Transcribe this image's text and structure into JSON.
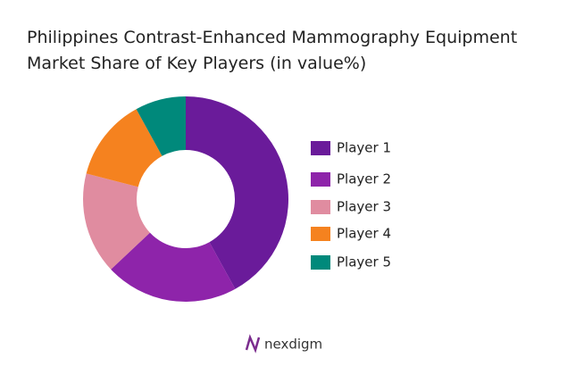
{
  "chart_data": {
    "type": "donut",
    "title": "Philippines Contrast-Enhanced Mammography Equipment Market Share of Key Players (in value%)",
    "categories": [
      "Player 1",
      "Player 2",
      "Player 3",
      "Player 4",
      "Player 5"
    ],
    "values": [
      42,
      21,
      16,
      13,
      8
    ],
    "colors": [
      "#6a1b9a",
      "#8e24aa",
      "#e08ca0",
      "#f5821f",
      "#00897b"
    ],
    "legend": "right"
  },
  "brand": "nexdigm"
}
